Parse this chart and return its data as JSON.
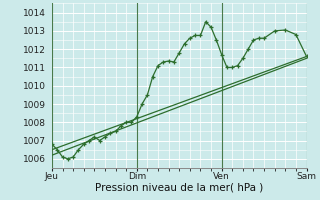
{
  "xlabel": "Pression niveau de la mer( hPa )",
  "bg_color": "#cceaea",
  "grid_color_h": "#ffffff",
  "grid_color_v": "#e8c8c8",
  "line_color": "#2d6e2d",
  "vline_color": "#4a7a4a",
  "ylim": [
    1005.5,
    1014.5
  ],
  "xlim": [
    0,
    24
  ],
  "day_positions": [
    0,
    8,
    16,
    24
  ],
  "day_labels": [
    "Jeu",
    "Dim",
    "Ven",
    "Sam"
  ],
  "series1_x": [
    0,
    0.5,
    1,
    1.5,
    2,
    2.5,
    3,
    3.5,
    4,
    4.5,
    5,
    5.5,
    6,
    6.5,
    7,
    7.5,
    8,
    8.5,
    9,
    9.5,
    10,
    10.5,
    11,
    11.5,
    12,
    12.5,
    13,
    13.5,
    14,
    14.5,
    15,
    15.5,
    16,
    16.5,
    17,
    17.5,
    18,
    18.5,
    19,
    19.5,
    20,
    21,
    22,
    23,
    24
  ],
  "series1_y": [
    1006.8,
    1006.5,
    1006.1,
    1006.0,
    1006.1,
    1006.5,
    1006.8,
    1007.0,
    1007.2,
    1007.0,
    1007.2,
    1007.4,
    1007.5,
    1007.8,
    1008.0,
    1008.0,
    1008.3,
    1009.0,
    1009.5,
    1010.5,
    1011.1,
    1011.3,
    1011.35,
    1011.3,
    1011.8,
    1012.3,
    1012.6,
    1012.75,
    1012.75,
    1013.5,
    1013.2,
    1012.5,
    1011.7,
    1011.0,
    1011.0,
    1011.1,
    1011.5,
    1012.0,
    1012.5,
    1012.6,
    1012.6,
    1013.0,
    1013.05,
    1012.8,
    1011.6
  ],
  "series2_x": [
    0,
    24
  ],
  "series2_y": [
    1006.5,
    1011.6
  ],
  "series3_x": [
    0,
    24
  ],
  "series3_y": [
    1006.2,
    1011.5
  ],
  "xlabel_fontsize": 7.5,
  "tick_fontsize": 6.5
}
